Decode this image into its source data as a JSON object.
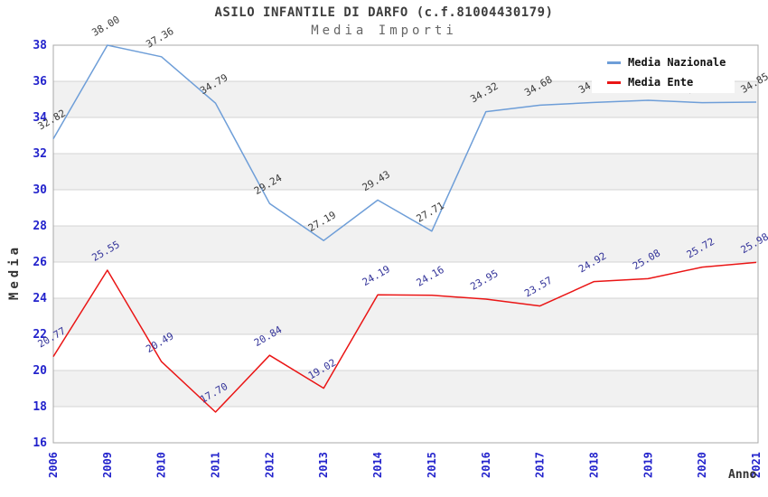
{
  "chart_data": {
    "type": "line",
    "title": "ASILO INFANTILE DI DARFO (c.f.81004430179)",
    "subtitle": "Media Importi",
    "xlabel": "Anno",
    "ylabel": "Media",
    "x": [
      "2006",
      "2009",
      "2010",
      "2011",
      "2012",
      "2013",
      "2014",
      "2015",
      "2016",
      "2017",
      "2018",
      "2019",
      "2020",
      "2021"
    ],
    "ylim": [
      16,
      38
    ],
    "ytick_step": 2,
    "grid": "horizontal gridlines with alternating gray bands",
    "legend_position": "top-right",
    "series": [
      {
        "name": "Media Nazionale",
        "color": "#6e9ed8",
        "label_color": "#3a3a3a",
        "values": [
          32.82,
          38.0,
          37.36,
          34.79,
          29.24,
          27.19,
          29.43,
          27.71,
          34.32,
          34.68,
          34.83,
          34.95,
          34.82,
          34.85
        ],
        "note": "labels for 2019 and 2020 are hidden behind the legend box"
      },
      {
        "name": "Media Ente",
        "color": "#ea1515",
        "label_color": "#333399",
        "values": [
          20.77,
          25.55,
          20.49,
          17.7,
          20.84,
          19.02,
          24.19,
          24.16,
          23.95,
          23.57,
          24.92,
          25.08,
          25.72,
          25.98
        ]
      }
    ],
    "colors": {
      "axis_tick_label": "#2323cc",
      "band_fill": "#f1f1f1",
      "gridline": "#d4d4d4",
      "plot_frame": "#a8a8a8",
      "title_text": "#3d3d3d",
      "subtitle_text": "#666666",
      "axis_title_text": "#333333",
      "background": "#ffffff"
    }
  }
}
